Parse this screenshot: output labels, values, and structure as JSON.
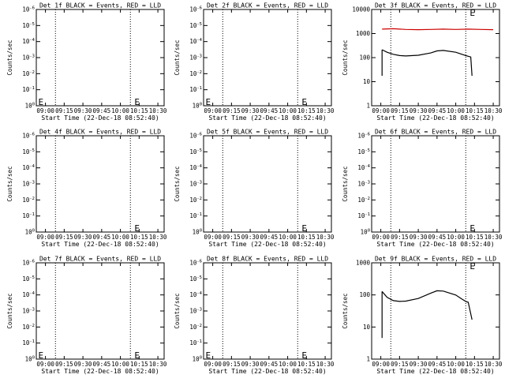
{
  "chart_data": [
    {
      "type": "line",
      "title": "Det 1f BLACK = Events, RED = LLD",
      "xlabel": "Start Time (22-Dec-18 08:52:40)",
      "ylabel": "Counts/sec",
      "x_ticks": [
        "09:00",
        "09:15",
        "09:30",
        "09:45",
        "10:00",
        "10:15",
        "10:30"
      ],
      "y_ticks": [
        "10^0",
        "10^-1",
        "10^-2",
        "10^-3",
        "10^-4",
        "10^-5",
        "10^-6"
      ],
      "xlim": [
        "08:52:40",
        "10:35"
      ],
      "ylim": [
        1e-06,
        1
      ],
      "yscale": "log",
      "y_ticks_reversed": true,
      "mark_labels": [
        "E",
        "E"
      ],
      "mark_times": [
        "08:53",
        "10:10"
      ],
      "vlines": [
        "09:08",
        "10:08"
      ],
      "series": []
    },
    {
      "type": "line",
      "title": "Det 2f BLACK = Events, RED = LLD",
      "xlabel": "Start Time (22-Dec-18 08:52:40)",
      "ylabel": "Counts/sec",
      "x_ticks": [
        "09:00",
        "09:15",
        "09:30",
        "09:45",
        "10:00",
        "10:15",
        "10:30"
      ],
      "y_ticks": [
        "10^0",
        "10^-1",
        "10^-2",
        "10^-3",
        "10^-4",
        "10^-5",
        "10^-6"
      ],
      "xlim": [
        "08:52:40",
        "10:35"
      ],
      "ylim": [
        1e-06,
        1
      ],
      "yscale": "log",
      "y_ticks_reversed": true,
      "mark_labels": [
        "E",
        "E"
      ],
      "mark_times": [
        "08:53",
        "10:10"
      ],
      "vlines": [
        "09:08",
        "10:08"
      ],
      "series": []
    },
    {
      "type": "line",
      "title": "Det 3f BLACK = Events, RED = LLD",
      "xlabel": "Start Time (22-Dec-18 08:52:40)",
      "ylabel": "Counts/sec",
      "x_ticks": [
        "09:00",
        "09:15",
        "09:30",
        "09:45",
        "10:00",
        "10:15",
        "10:30"
      ],
      "y_ticks": [
        "1",
        "10",
        "100",
        "1000",
        "10000"
      ],
      "xlim": [
        "08:52:40",
        "10:35"
      ],
      "ylim": [
        1,
        15000
      ],
      "yscale": "log",
      "y_ticks_reversed": false,
      "mark_labels": [
        "E"
      ],
      "mark_times": [
        "10:10"
      ],
      "vlines": [
        "09:08",
        "10:08"
      ],
      "series": [
        {
          "color": "#cc0000",
          "x": [
            "09:01",
            "09:10",
            "09:20",
            "09:30",
            "09:40",
            "09:50",
            "10:00",
            "10:10",
            "10:20",
            "10:30"
          ],
          "y": [
            2100,
            2200,
            2050,
            2000,
            2050,
            2100,
            2050,
            2100,
            2050,
            2000
          ]
        },
        {
          "color": "#000000",
          "x": [
            "09:01",
            "09:05",
            "09:10",
            "09:15",
            "09:20",
            "09:30",
            "09:40",
            "09:45",
            "09:50",
            "10:00",
            "10:08",
            "10:10",
            "10:12",
            "10:13"
          ],
          "y": [
            270,
            210,
            170,
            150,
            145,
            155,
            195,
            240,
            250,
            210,
            150,
            140,
            130,
            20
          ]
        },
        {
          "color": "#000000",
          "x": [
            "09:01",
            "09:01"
          ],
          "y": [
            270,
            20
          ]
        }
      ]
    },
    {
      "type": "line",
      "title": "Det 4f BLACK = Events, RED = LLD",
      "xlabel": "Start Time (22-Dec-18 08:52:40)",
      "ylabel": "Counts/sec",
      "x_ticks": [
        "09:00",
        "09:15",
        "09:30",
        "09:45",
        "10:00",
        "10:15",
        "10:30"
      ],
      "y_ticks": [
        "10^0",
        "10^-1",
        "10^-2",
        "10^-3",
        "10^-4",
        "10^-5",
        "10^-6"
      ],
      "xlim": [
        "08:52:40",
        "10:35"
      ],
      "ylim": [
        1e-06,
        1
      ],
      "yscale": "log",
      "y_ticks_reversed": true,
      "mark_labels": [
        "E"
      ],
      "mark_times": [
        "10:10"
      ],
      "vlines": [
        "09:08",
        "10:08"
      ],
      "series": []
    },
    {
      "type": "line",
      "title": "Det 5f BLACK = Events, RED = LLD",
      "xlabel": "Start Time (22-Dec-18 08:52:40)",
      "ylabel": "Counts/sec",
      "x_ticks": [
        "09:00",
        "09:15",
        "09:30",
        "09:45",
        "10:00",
        "10:15",
        "10:30"
      ],
      "y_ticks": [
        "10^0",
        "10^-1",
        "10^-2",
        "10^-3",
        "10^-4",
        "10^-5",
        "10^-6"
      ],
      "xlim": [
        "08:52:40",
        "10:35"
      ],
      "ylim": [
        1e-06,
        1
      ],
      "yscale": "log",
      "y_ticks_reversed": true,
      "mark_labels": [
        "E"
      ],
      "mark_times": [
        "10:10"
      ],
      "vlines": [
        "09:08",
        "10:08"
      ],
      "series": []
    },
    {
      "type": "line",
      "title": "Det 6f BLACK = Events, RED = LLD",
      "xlabel": "Start Time (22-Dec-18 08:52:40)",
      "ylabel": "Counts/sec",
      "x_ticks": [
        "09:00",
        "09:15",
        "09:30",
        "09:45",
        "10:00",
        "10:15",
        "10:30"
      ],
      "y_ticks": [
        "10^0",
        "10^-1",
        "10^-2",
        "10^-3",
        "10^-4",
        "10^-5",
        "10^-6"
      ],
      "xlim": [
        "08:52:40",
        "10:35"
      ],
      "ylim": [
        1e-06,
        1
      ],
      "yscale": "log",
      "y_ticks_reversed": true,
      "mark_labels": [
        "E"
      ],
      "mark_times": [
        "10:10"
      ],
      "vlines": [
        "09:08",
        "10:08"
      ],
      "series": []
    },
    {
      "type": "line",
      "title": "Det 7f BLACK = Events, RED = LLD",
      "xlabel": "Start Time (22-Dec-18 08:52:40)",
      "ylabel": "Counts/sec",
      "x_ticks": [
        "09:00",
        "09:15",
        "09:30",
        "09:45",
        "10:00",
        "10:15",
        "10:30"
      ],
      "y_ticks": [
        "10^0",
        "10^-1",
        "10^-2",
        "10^-3",
        "10^-4",
        "10^-5",
        "10^-6"
      ],
      "xlim": [
        "08:52:40",
        "10:35"
      ],
      "ylim": [
        1e-06,
        1
      ],
      "yscale": "log",
      "y_ticks_reversed": true,
      "mark_labels": [
        "E",
        "E"
      ],
      "mark_times": [
        "08:53",
        "10:10"
      ],
      "vlines": [
        "09:08",
        "10:08"
      ],
      "series": []
    },
    {
      "type": "line",
      "title": "Det 8f BLACK = Events, RED = LLD",
      "xlabel": "Start Time (22-Dec-18 08:52:40)",
      "ylabel": "Counts/sec",
      "x_ticks": [
        "09:00",
        "09:15",
        "09:30",
        "09:45",
        "10:00",
        "10:15",
        "10:30"
      ],
      "y_ticks": [
        "10^0",
        "10^-1",
        "10^-2",
        "10^-3",
        "10^-4",
        "10^-5",
        "10^-6"
      ],
      "xlim": [
        "08:52:40",
        "10:35"
      ],
      "ylim": [
        1e-06,
        1
      ],
      "yscale": "log",
      "y_ticks_reversed": true,
      "mark_labels": [
        "E",
        "E"
      ],
      "mark_times": [
        "08:53",
        "10:10"
      ],
      "vlines": [
        "09:08",
        "10:08"
      ],
      "series": []
    },
    {
      "type": "line",
      "title": "Det 9f BLACK = Events, RED = LLD",
      "xlabel": "Start Time (22-Dec-18 08:52:40)",
      "ylabel": "Counts/sec",
      "x_ticks": [
        "09:00",
        "09:15",
        "09:30",
        "09:45",
        "10:00",
        "10:15",
        "10:30"
      ],
      "y_ticks": [
        "1",
        "10",
        "100",
        "1000"
      ],
      "xlim": [
        "08:52:40",
        "10:35"
      ],
      "ylim": [
        1,
        1500
      ],
      "yscale": "log",
      "y_ticks_reversed": false,
      "mark_labels": [
        "E"
      ],
      "mark_times": [
        "10:10"
      ],
      "vlines": [
        "09:08",
        "10:08"
      ],
      "series": [
        {
          "color": "#000000",
          "x": [
            "09:01",
            "09:05",
            "09:10",
            "09:15",
            "09:20",
            "09:30",
            "09:40",
            "09:45",
            "09:50",
            "10:00",
            "10:05",
            "10:08",
            "10:10",
            "10:13"
          ],
          "y": [
            170,
            110,
            85,
            80,
            82,
            100,
            150,
            180,
            175,
            130,
            95,
            80,
            75,
            20
          ]
        },
        {
          "color": "#000000",
          "x": [
            "09:01",
            "09:01"
          ],
          "y": [
            170,
            5
          ]
        }
      ]
    }
  ]
}
